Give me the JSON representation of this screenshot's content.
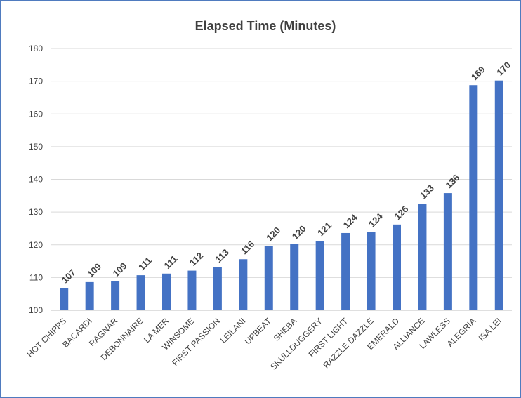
{
  "chart_data": {
    "type": "bar",
    "title": "Elapsed Time (Minutes)",
    "xlabel": "",
    "ylabel": "",
    "ylim": [
      100,
      180
    ],
    "yticks": [
      100,
      110,
      120,
      130,
      140,
      150,
      160,
      170,
      180
    ],
    "grid": true,
    "legend": "none",
    "bar_color": "#4472c4",
    "categories": [
      "HOT CHIPPS",
      "BACARDI",
      "RAGNAR",
      "DEBONNAIRE",
      "LA MER",
      "WINSOME",
      "FIRST PASSION",
      "LEILANI",
      "UPBEAT",
      "SHEBA",
      "SKULLDUGGERY",
      "FIRST LIGHT",
      "RAZZLE DAZZLE",
      "EMERALD",
      "ALLIANCE",
      "LAWLESS",
      "ALEGRIA",
      "ISA LEI"
    ],
    "values": [
      106.8,
      108.6,
      108.8,
      110.7,
      111.2,
      112.1,
      113.1,
      115.6,
      119.7,
      120.2,
      121.2,
      123.6,
      123.9,
      126.2,
      132.6,
      135.8,
      168.8,
      170.2
    ],
    "data_labels": [
      "107",
      "109",
      "109",
      "111",
      "111",
      "112",
      "113",
      "116",
      "120",
      "120",
      "121",
      "124",
      "124",
      "126",
      "133",
      "136",
      "169",
      "170"
    ]
  }
}
